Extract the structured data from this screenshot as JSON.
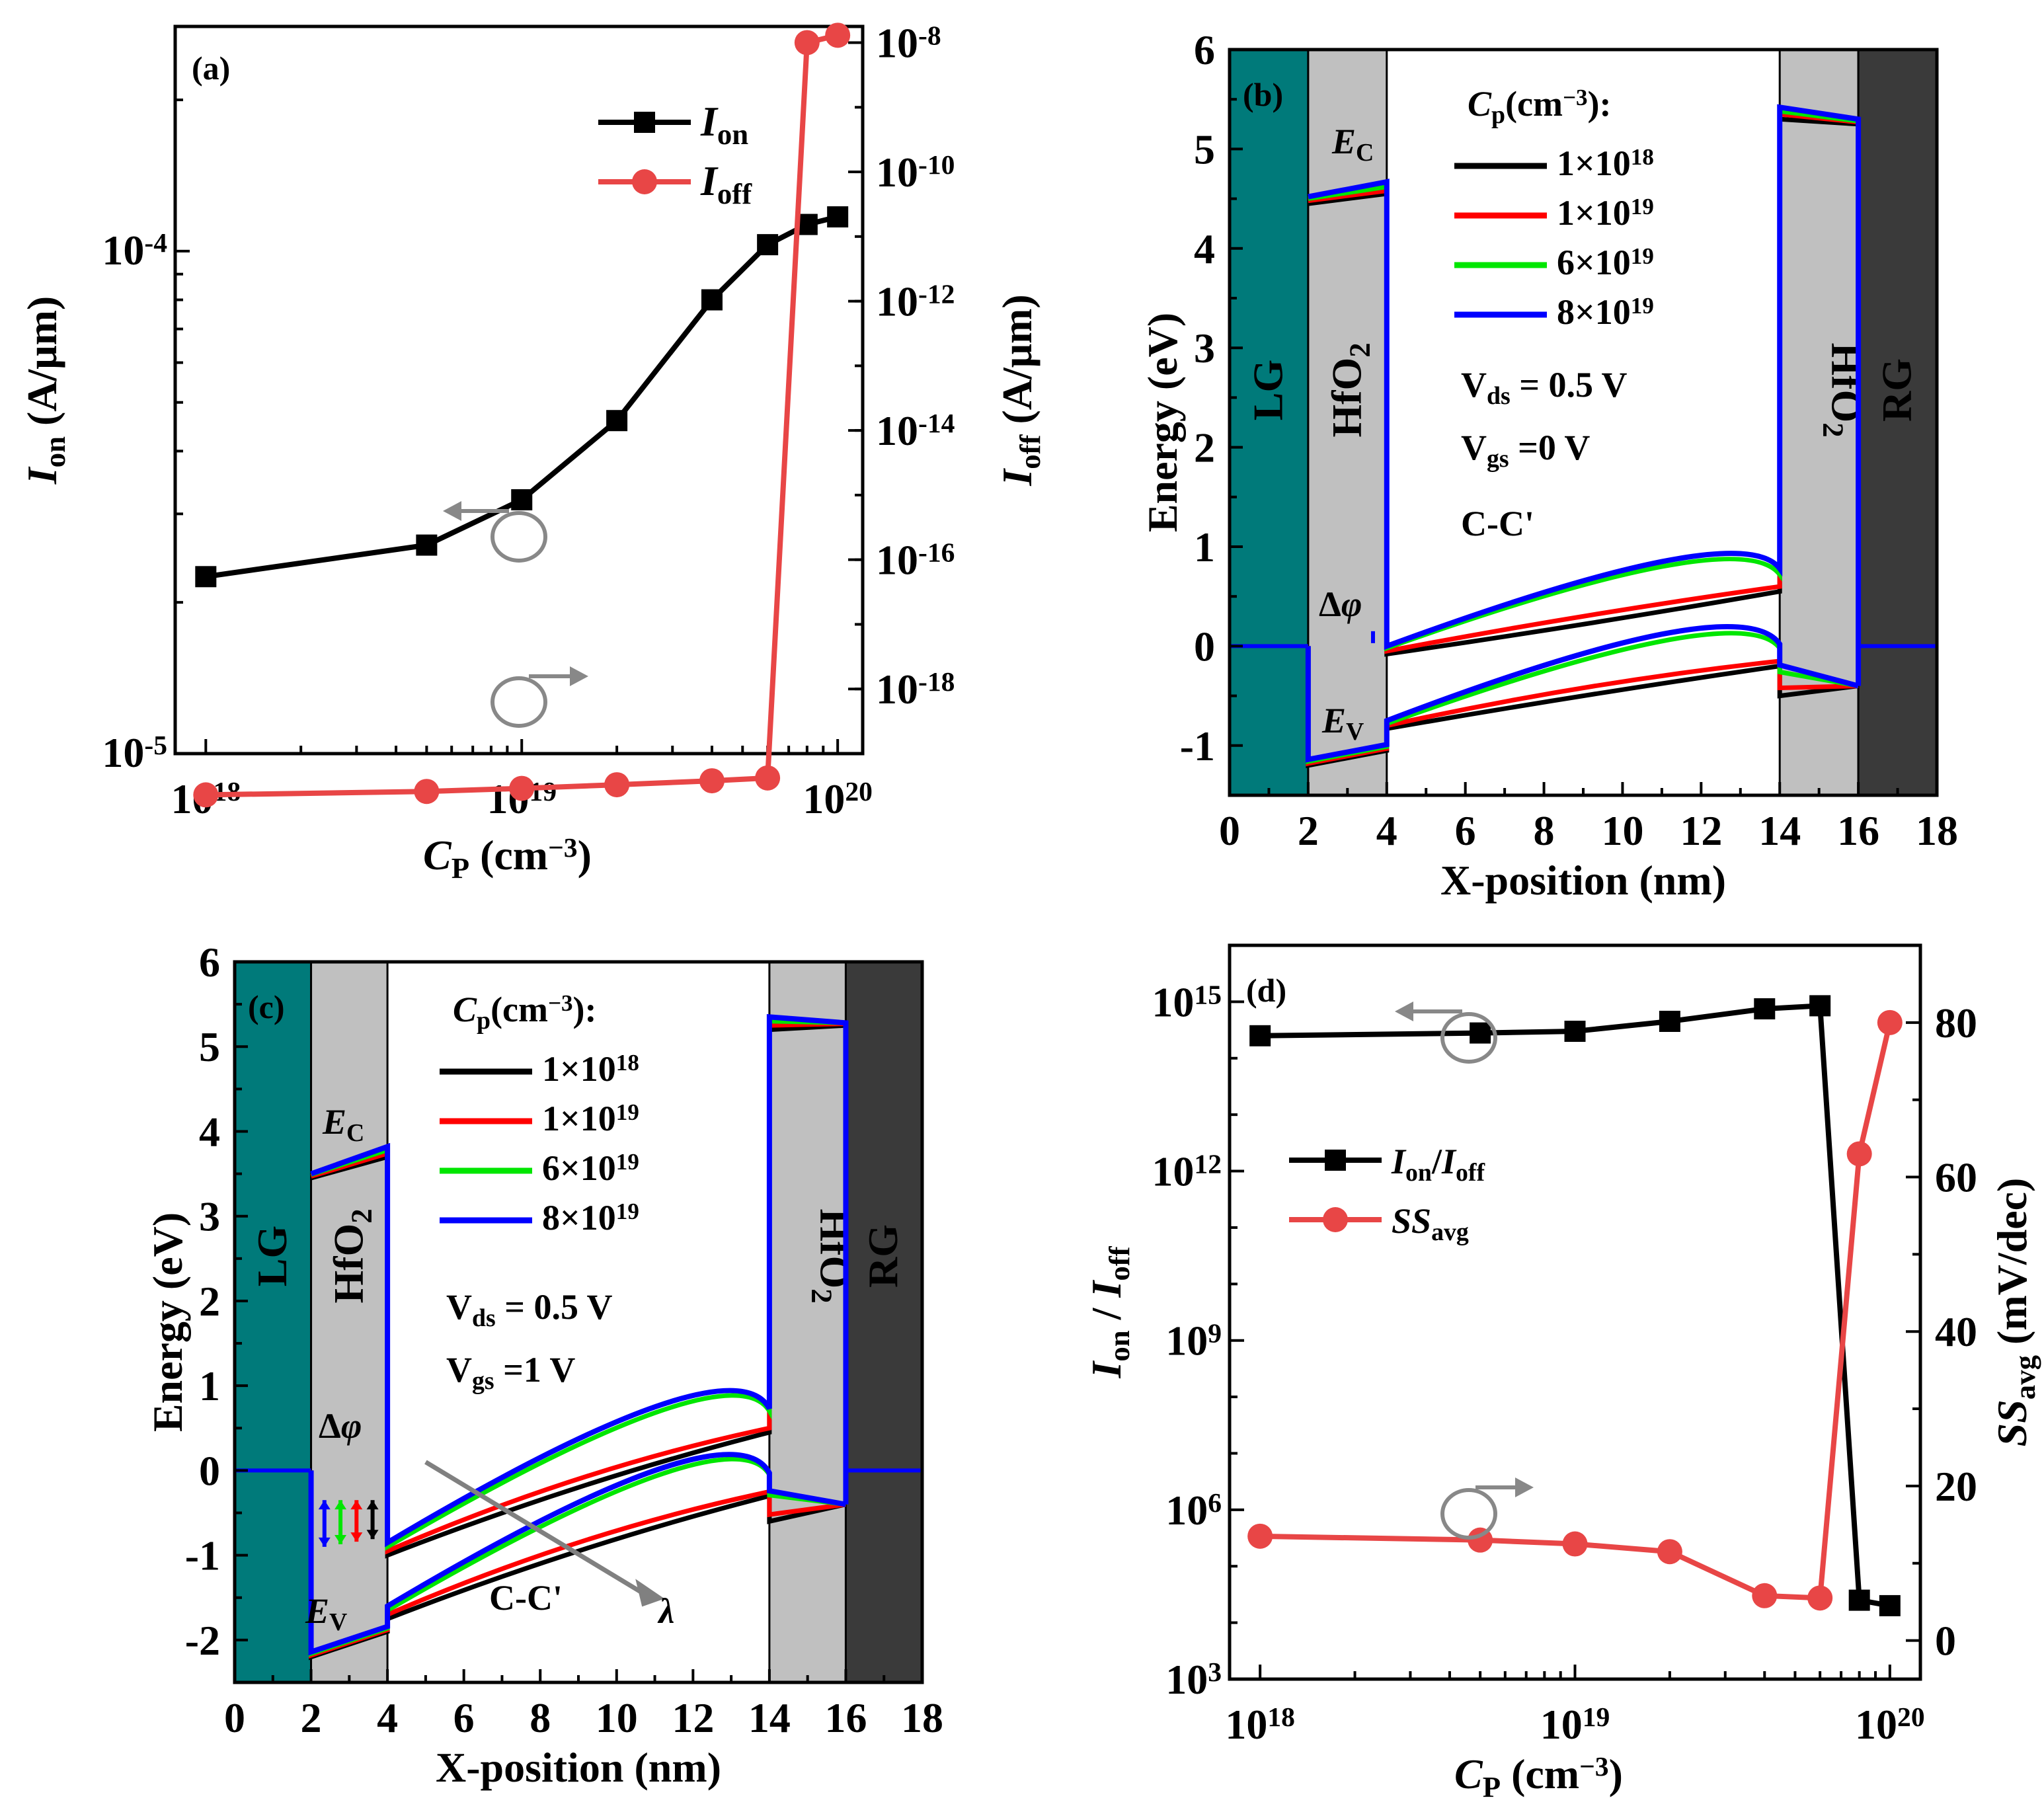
{
  "chart_data": [
    {
      "id": "a",
      "type": "line",
      "panel_label": "(a)",
      "x": [
        1e+18,
        5e+18,
        1e+19,
        2e+19,
        4e+19,
        6e+19,
        8e+19,
        1e+20
      ],
      "xlabel_main": "C",
      "xlabel_sub": "P",
      "xlabel_unit": " (cm",
      "xlabel_sup": "−3",
      "xlabel_close": ")",
      "xlim": [
        8e+17,
        1.2e+20
      ],
      "xscale": "log",
      "x_ticks": [
        {
          "base": "10",
          "exp": "18"
        },
        {
          "base": "10",
          "exp": "19"
        },
        {
          "base": "10",
          "exp": "20"
        }
      ],
      "ylabel_left": {
        "main": "I",
        "sub": "on",
        "unit": " (A/μm)"
      },
      "ylabel_right": {
        "main": "I",
        "sub": "off",
        "unit": " (A/μm)"
      },
      "ylim_left": [
        1e-05,
        0.00028
      ],
      "ylim_right": [
        1e-19,
        1.78e-08
      ],
      "left_ticks": [
        {
          "base": "10",
          "exp": "-5"
        },
        {
          "base": "10",
          "exp": "-4"
        }
      ],
      "right_ticks": [
        {
          "base": "10",
          "exp": "-18"
        },
        {
          "base": "10",
          "exp": "-16"
        },
        {
          "base": "10",
          "exp": "-14"
        },
        {
          "base": "10",
          "exp": "-12"
        },
        {
          "base": "10",
          "exp": "-10"
        },
        {
          "base": "10",
          "exp": "-8"
        }
      ],
      "series": [
        {
          "name": "Ion",
          "legend_main": "I",
          "legend_sub": "on",
          "axis": "left",
          "color": "#000000",
          "marker": "square",
          "values": [
            2.25e-05,
            2.6e-05,
            3.2e-05,
            4.6e-05,
            8e-05,
            0.000103,
            0.000113,
            0.000117
          ]
        },
        {
          "name": "Ioff",
          "legend_main": "I",
          "legend_sub": "off",
          "axis": "right",
          "color": "#e84646",
          "marker": "circle",
          "values": [
            2.3e-20,
            2.6e-20,
            2.9e-20,
            3.3e-20,
            3.8e-20,
            4.2e-20,
            1e-08,
            1.3e-08
          ]
        }
      ]
    },
    {
      "id": "b",
      "type": "line",
      "panel_label": "(b)",
      "xlabel": "X-position (nm)",
      "ylabel": "Energy (eV)",
      "xlim": [
        0,
        18
      ],
      "ylim": [
        -1.5,
        6
      ],
      "x_ticks": [
        "0",
        "2",
        "4",
        "6",
        "8",
        "10",
        "12",
        "14",
        "16",
        "18"
      ],
      "y_ticks": [
        "-1",
        "0",
        "1",
        "2",
        "3",
        "4",
        "5",
        "6"
      ],
      "regions": [
        {
          "label": "LG",
          "from": 0,
          "to": 2,
          "color": "#007a7a"
        },
        {
          "label": "HfO",
          "sub": "2",
          "from": 2,
          "to": 4,
          "color": "#c0c0c0"
        },
        {
          "label": "HfO",
          "sub": "2",
          "from": 14,
          "to": 16,
          "color": "#c0c0c0",
          "rotated": true
        },
        {
          "label": "RG",
          "from": 16,
          "to": 18,
          "color": "#3a3a3a"
        }
      ],
      "legend_title": {
        "main": "C",
        "sub": "p",
        "unit": "(cm",
        "sup": "−3",
        "close": "):"
      },
      "legend": [
        {
          "label": "1×10",
          "exp": "18",
          "color": "#000000"
        },
        {
          "label": "1×10",
          "exp": "19",
          "color": "#ff0000"
        },
        {
          "label": "6×10",
          "exp": "19",
          "color": "#00e600"
        },
        {
          "label": "8×10",
          "exp": "19",
          "color": "#0000ff"
        }
      ],
      "conditions": [
        {
          "main": "V",
          "sub": "ds",
          "rest": " = 0.5 V"
        },
        {
          "main": "V",
          "sub": "gs",
          "rest": " =0 V"
        }
      ],
      "cut_label": "C-C'",
      "ec_label": {
        "main": "E",
        "sub": "C"
      },
      "ev_label": {
        "main": "E",
        "sub": "V"
      },
      "dphi_label": "Δφ",
      "fermi_level": 0,
      "bands": {
        "ec_oxide_left": [
          [
            4.45,
            4.55
          ],
          [
            4.48,
            4.58
          ],
          [
            4.5,
            4.62
          ],
          [
            4.52,
            4.67
          ]
        ],
        "ec_channel": [
          [
            [
              4,
              -0.08
            ],
            [
              9,
              0.22
            ],
            [
              14,
              0.55
            ]
          ],
          [
            [
              4,
              -0.05
            ],
            [
              9,
              0.3
            ],
            [
              14,
              0.6
            ]
          ],
          [
            [
              4,
              -0.02
            ],
            [
              11,
              0.8
            ],
            [
              14,
              0.72
            ]
          ],
          [
            [
              4,
              0.0
            ],
            [
              11,
              0.85
            ],
            [
              14,
              0.78
            ]
          ]
        ],
        "ev_channel": [
          [
            [
              4,
              -0.83
            ],
            [
              9,
              -0.5
            ],
            [
              14,
              -0.2
            ]
          ],
          [
            [
              4,
              -0.8
            ],
            [
              9,
              -0.42
            ],
            [
              14,
              -0.15
            ]
          ],
          [
            [
              4,
              -0.78
            ],
            [
              11,
              0.05
            ],
            [
              14,
              -0.02
            ]
          ],
          [
            [
              4,
              -0.75
            ],
            [
              11,
              0.12
            ],
            [
              14,
              0.02
            ]
          ]
        ],
        "ec_oxide_right": [
          [
            5.3,
            5.25
          ],
          [
            5.35,
            5.27
          ],
          [
            5.38,
            5.28
          ],
          [
            5.42,
            5.3
          ]
        ]
      }
    },
    {
      "id": "c",
      "type": "line",
      "panel_label": "(c)",
      "xlabel": "X-position (nm)",
      "ylabel": "Energy (eV)",
      "xlim": [
        0,
        18
      ],
      "ylim": [
        -2.5,
        6
      ],
      "x_ticks": [
        "0",
        "2",
        "4",
        "6",
        "8",
        "10",
        "12",
        "14",
        "16",
        "18"
      ],
      "y_ticks": [
        "-2",
        "-1",
        "0",
        "1",
        "2",
        "3",
        "4",
        "5",
        "6"
      ],
      "regions": [
        {
          "label": "LG",
          "from": 0,
          "to": 2,
          "color": "#007a7a"
        },
        {
          "label": "HfO",
          "sub": "2",
          "from": 2,
          "to": 4,
          "color": "#c0c0c0"
        },
        {
          "label": "HfO",
          "sub": "2",
          "from": 14,
          "to": 16,
          "color": "#c0c0c0",
          "rotated": true
        },
        {
          "label": "RG",
          "from": 16,
          "to": 18,
          "color": "#3a3a3a"
        }
      ],
      "legend_title": {
        "main": "C",
        "sub": "p",
        "unit": "(cm",
        "sup": "−3",
        "close": "):"
      },
      "legend": [
        {
          "label": "1×10",
          "exp": "18",
          "color": "#000000"
        },
        {
          "label": "1×10",
          "exp": "19",
          "color": "#ff0000"
        },
        {
          "label": "6×10",
          "exp": "19",
          "color": "#00e600"
        },
        {
          "label": "8×10",
          "exp": "19",
          "color": "#0000ff"
        }
      ],
      "conditions": [
        {
          "main": "V",
          "sub": "ds",
          "rest": " = 0.5 V"
        },
        {
          "main": "V",
          "sub": "gs",
          "rest": " =1 V"
        }
      ],
      "cut_label": "C-C'",
      "ec_label": {
        "main": "E",
        "sub": "C"
      },
      "ev_label": {
        "main": "E",
        "sub": "V"
      },
      "dphi_label": "Δφ",
      "lambda_label": "λ",
      "fermi_level": 0,
      "bands": {
        "ec_oxide_left": [
          [
            3.45,
            3.7
          ],
          [
            3.47,
            3.74
          ],
          [
            3.49,
            3.78
          ],
          [
            3.5,
            3.82
          ]
        ],
        "ec_channel": [
          [
            [
              4,
              -1.0
            ],
            [
              9,
              -0.2
            ],
            [
              14,
              0.45
            ]
          ],
          [
            [
              4,
              -0.95
            ],
            [
              9,
              -0.1
            ],
            [
              14,
              0.5
            ]
          ],
          [
            [
              4,
              -0.9
            ],
            [
              11,
              0.68
            ],
            [
              14,
              0.7
            ]
          ],
          [
            [
              4,
              -0.85
            ],
            [
              11,
              0.75
            ],
            [
              14,
              0.73
            ]
          ]
        ],
        "ev_channel": [
          [
            [
              4,
              -1.75
            ],
            [
              9,
              -0.95
            ],
            [
              14,
              -0.3
            ]
          ],
          [
            [
              4,
              -1.7
            ],
            [
              9,
              -0.85
            ],
            [
              14,
              -0.25
            ]
          ],
          [
            [
              4,
              -1.65
            ],
            [
              11,
              -0.07
            ],
            [
              14,
              -0.05
            ]
          ],
          [
            [
              4,
              -1.6
            ],
            [
              11,
              0.0
            ],
            [
              14,
              -0.03
            ]
          ]
        ],
        "ec_oxide_right": [
          [
            5.2,
            5.25
          ],
          [
            5.25,
            5.27
          ],
          [
            5.3,
            5.28
          ],
          [
            5.35,
            5.28
          ]
        ]
      }
    },
    {
      "id": "d",
      "type": "line",
      "panel_label": "(d)",
      "x": [
        1e+18,
        5e+18,
        1e+19,
        2e+19,
        4e+19,
        6e+19,
        8e+19,
        1e+20
      ],
      "xlabel_main": "C",
      "xlabel_sub": "P",
      "xlabel_unit": " (cm",
      "xlabel_sup": "−3",
      "xlabel_close": ")",
      "xlim": [
        8e+17,
        1.25e+20
      ],
      "xscale": "log",
      "x_ticks": [
        {
          "base": "10",
          "exp": "18"
        },
        {
          "base": "10",
          "exp": "19"
        },
        {
          "base": "10",
          "exp": "20"
        }
      ],
      "ylabel_left": {
        "main1": "I",
        "sub1": "on",
        "mid": " / ",
        "main2": "I",
        "sub2": "off"
      },
      "ylabel_right": {
        "main": "SS",
        "sub": "avg",
        "unit": " (mV/dec)"
      },
      "ylim_left": [
        1000.0,
        1e+16
      ],
      "ylim_right": [
        -5,
        90
      ],
      "left_ticks": [
        {
          "base": "10",
          "exp": "3"
        },
        {
          "base": "10",
          "exp": "6"
        },
        {
          "base": "10",
          "exp": "9"
        },
        {
          "base": "10",
          "exp": "12"
        },
        {
          "base": "10",
          "exp": "15"
        }
      ],
      "right_ticks": [
        "0",
        "20",
        "40",
        "60",
        "80"
      ],
      "series": [
        {
          "name": "Ion/Ioff",
          "legend_main1": "I",
          "legend_sub1": "on",
          "legend_mid": "/",
          "legend_main2": "I",
          "legend_sub2": "off",
          "axis": "left",
          "color": "#000000",
          "marker": "square",
          "values": [
            250000000000000.0,
            280000000000000.0,
            300000000000000.0,
            450000000000000.0,
            750000000000000.0,
            850000000000000.0,
            25000.0,
            20000.0
          ]
        },
        {
          "name": "SSavg",
          "legend_main": "SS",
          "legend_sub": "avg",
          "axis": "right",
          "color": "#e84646",
          "marker": "circle",
          "values": [
            13.5,
            13.0,
            12.5,
            11.5,
            5.8,
            5.5,
            63,
            80
          ]
        }
      ]
    }
  ]
}
